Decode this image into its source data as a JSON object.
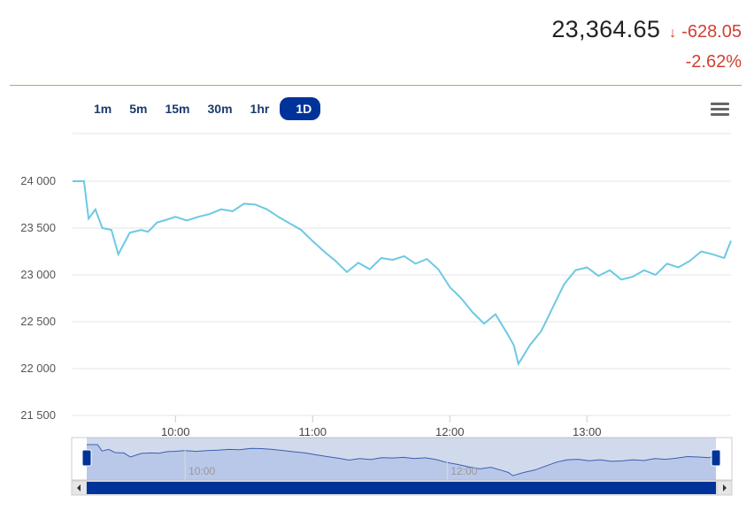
{
  "quote": {
    "price": "23,364.65",
    "change": "-628.05",
    "change_pct": "-2.62%",
    "direction_icon": "arrow-down-icon",
    "down_color": "#d23f31"
  },
  "range_buttons": [
    {
      "label": "1m",
      "active": false
    },
    {
      "label": "5m",
      "active": false
    },
    {
      "label": "15m",
      "active": false
    },
    {
      "label": "30m",
      "active": false
    },
    {
      "label": "1hr",
      "active": false
    },
    {
      "label": "1D",
      "active": true
    }
  ],
  "menu_icon": "hamburger-menu-icon",
  "colors": {
    "line": "#6cc9e3",
    "navigator_line": "#3a5fb0",
    "navigator_fill": "#a8bde6",
    "accent": "#003399",
    "divider": "#c8a063"
  },
  "chart_data": {
    "type": "line",
    "series": [
      {
        "x": [
          "09:15",
          "09:20",
          "09:22",
          "09:25",
          "09:28",
          "09:32",
          "09:35",
          "09:40",
          "09:45",
          "09:48",
          "09:52",
          "09:55",
          "10:00",
          "10:05",
          "10:10",
          "10:15",
          "10:20",
          "10:25",
          "10:30",
          "10:35",
          "10:40",
          "10:45",
          "10:50",
          "10:55",
          "11:00",
          "11:05",
          "11:10",
          "11:15",
          "11:20",
          "11:25",
          "11:30",
          "11:35",
          "11:40",
          "11:45",
          "11:50",
          "11:55",
          "12:00",
          "12:05",
          "12:10",
          "12:15",
          "12:20",
          "12:25",
          "12:28",
          "12:30",
          "12:35",
          "12:40",
          "12:45",
          "12:50",
          "12:55",
          "13:00",
          "13:05",
          "13:10",
          "13:15",
          "13:20",
          "13:25",
          "13:30",
          "13:35",
          "13:40",
          "13:45",
          "13:50",
          "13:55",
          "14:00",
          "14:03"
        ],
        "y": [
          24000,
          24000,
          23600,
          23700,
          23500,
          23480,
          23220,
          23450,
          23480,
          23460,
          23560,
          23580,
          23620,
          23580,
          23620,
          23650,
          23700,
          23680,
          23760,
          23750,
          23700,
          23620,
          23550,
          23480,
          23360,
          23250,
          23150,
          23030,
          23130,
          23060,
          23180,
          23160,
          23200,
          23120,
          23170,
          23060,
          22870,
          22750,
          22600,
          22480,
          22580,
          22380,
          22250,
          22050,
          22250,
          22400,
          22650,
          22900,
          23050,
          23080,
          22990,
          23050,
          22950,
          22980,
          23050,
          23000,
          23120,
          23080,
          23150,
          23250,
          23220,
          23180,
          23364
        ]
      }
    ],
    "y_ticks": [
      "24 000",
      "23 500",
      "23 000",
      "22 500",
      "22 000",
      "21 500"
    ],
    "ylim": [
      21500,
      24000
    ],
    "x_ticks": [
      "10:00",
      "11:00",
      "12:00",
      "13:00"
    ],
    "navigator_x_ticks": [
      "10:00",
      "12:00"
    ],
    "grid": true
  }
}
